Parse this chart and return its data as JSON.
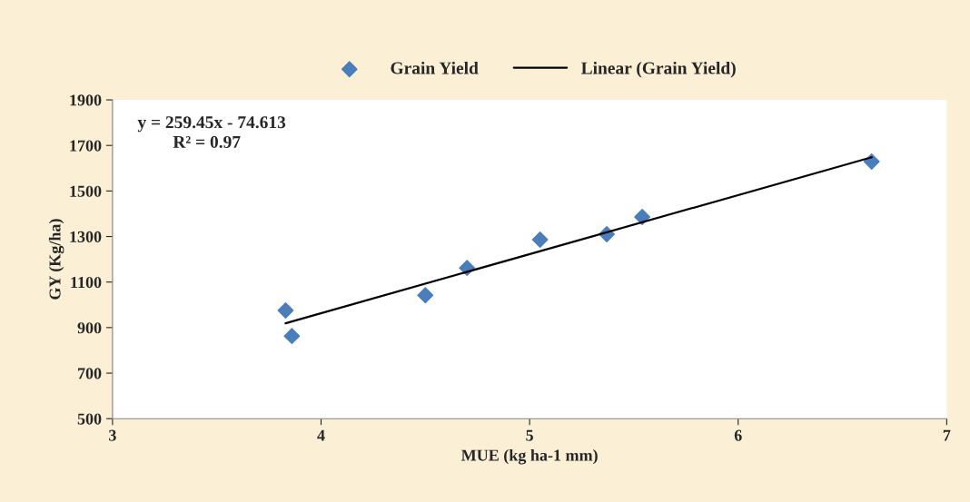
{
  "chart_data": {
    "type": "scatter",
    "xlabel": "MUE (kg ha-1 mm)",
    "ylabel": "GY (Kg/ha)",
    "xlim": [
      3,
      7
    ],
    "xticks": [
      3,
      4,
      5,
      6,
      7
    ],
    "ylim": [
      500,
      1900
    ],
    "yticks": [
      500,
      700,
      900,
      1100,
      1300,
      1500,
      1700,
      1900
    ],
    "grid": false,
    "legend": "top",
    "series": [
      {
        "name": "Grain Yield",
        "marker": "diamond",
        "color": "#4a7ebb",
        "x": [
          3.83,
          3.86,
          4.5,
          4.7,
          5.05,
          5.37,
          5.54,
          6.64
        ],
        "values": [
          975,
          863,
          1042,
          1162,
          1286,
          1310,
          1386,
          1629
        ]
      },
      {
        "name": "Linear (Grain Yield)",
        "type": "line",
        "marker": "none",
        "line_style": "solid",
        "color": "#000000",
        "x": [
          3.83,
          6.64
        ],
        "values": [
          919,
          1648
        ]
      }
    ],
    "annotations": [
      {
        "text": "y = 259.45x - 74.613\n        R² = 0.97"
      }
    ]
  }
}
